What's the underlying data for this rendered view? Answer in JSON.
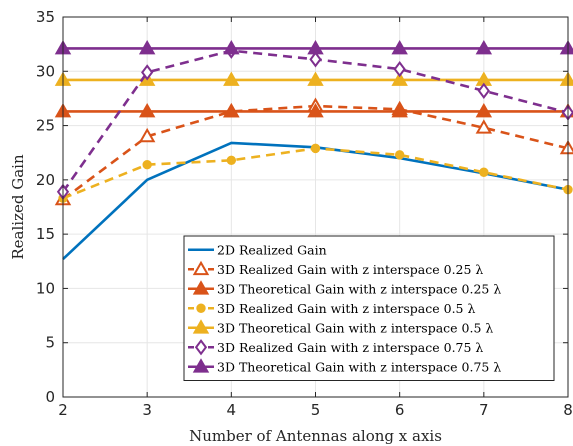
{
  "chart_data": {
    "type": "line",
    "xlabel": "Number of Antennas along x axis",
    "ylabel": "Realized Gain",
    "xlim": [
      2,
      8
    ],
    "ylim": [
      0,
      35
    ],
    "x_ticks": [
      2,
      3,
      4,
      5,
      6,
      7,
      8
    ],
    "y_ticks": [
      0,
      5,
      10,
      15,
      20,
      25,
      30,
      35
    ],
    "grid": true,
    "legend_position": "bottom-right",
    "x": [
      2,
      3,
      4,
      5,
      6,
      7,
      8
    ],
    "series": [
      {
        "name": "2D Realized Gain",
        "values": [
          12.7,
          20.0,
          23.4,
          23.0,
          22.0,
          20.6,
          19.1
        ],
        "color": "#0072BD",
        "dash": "solid",
        "marker": "none"
      },
      {
        "name": "3D Realized Gain with z interspace 0.25 λ",
        "values": [
          18.2,
          24.0,
          26.3,
          26.8,
          26.5,
          24.8,
          22.9
        ],
        "color": "#D95319",
        "dash": "dashed",
        "marker": "triangle-open"
      },
      {
        "name": "3D Theoretical Gain with z interspace 0.25 λ",
        "values": [
          26.3,
          26.3,
          26.3,
          26.3,
          26.3,
          26.3,
          26.3
        ],
        "color": "#D95319",
        "dash": "solid",
        "marker": "triangle-filled"
      },
      {
        "name": "3D Realized Gain with z interspace 0.5 λ",
        "values": [
          18.3,
          21.4,
          21.8,
          22.9,
          22.3,
          20.7,
          19.1
        ],
        "color": "#EDB120",
        "dash": "dashed",
        "marker": "circle-filled"
      },
      {
        "name": "3D Theoretical Gain with z interspace 0.5 λ",
        "values": [
          29.2,
          29.2,
          29.2,
          29.2,
          29.2,
          29.2,
          29.2
        ],
        "color": "#EDB120",
        "dash": "solid",
        "marker": "triangle-filled"
      },
      {
        "name": "3D Realized Gain with z interspace 0.75 λ",
        "values": [
          18.9,
          29.9,
          31.9,
          31.1,
          30.2,
          28.2,
          26.2
        ],
        "color": "#7E2F8E",
        "dash": "dashed",
        "marker": "diamond-open"
      },
      {
        "name": "3D Theoretical Gain with z interspace 0.75 λ",
        "values": [
          32.1,
          32.1,
          32.1,
          32.1,
          32.1,
          32.1,
          32.1
        ],
        "color": "#7E2F8E",
        "dash": "solid",
        "marker": "triangle-filled"
      }
    ]
  }
}
